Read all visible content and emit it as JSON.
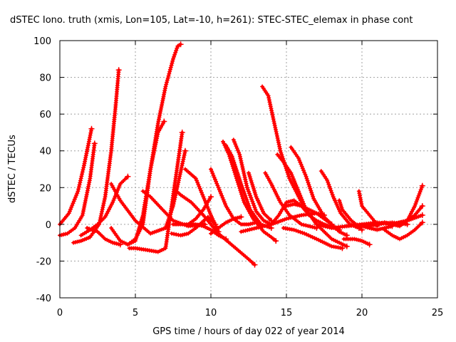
{
  "chart_data": {
    "type": "scatter",
    "title": "dSTEC Iono. truth (xmis, Lon=105, Lat=-10, h=261): STEC-STEC_elemax in phase cont",
    "xlabel": "GPS time / hours of day 022 of year 2014",
    "ylabel": "dSTEC  / TECUs",
    "xlim": [
      0,
      25
    ],
    "ylim": [
      -40,
      100
    ],
    "xticks": [
      0,
      5,
      10,
      15,
      20,
      25
    ],
    "yticks": [
      -40,
      -20,
      0,
      20,
      40,
      60,
      80,
      100
    ],
    "grid": true,
    "marker": "plus",
    "color": "#ff0000",
    "series": [
      {
        "x": [
          0.0,
          0.6,
          1.2,
          1.6,
          1.9,
          2.1
        ],
        "y": [
          0,
          6,
          18,
          32,
          44,
          52
        ]
      },
      {
        "x": [
          0.0,
          0.5,
          1.0,
          1.5,
          2.0,
          2.3
        ],
        "y": [
          -6,
          -5,
          -2,
          5,
          25,
          44
        ]
      },
      {
        "x": [
          0.9,
          1.4,
          2.0,
          2.6,
          3.0,
          3.4,
          3.7,
          3.9
        ],
        "y": [
          -10,
          -9,
          -7,
          0,
          15,
          40,
          65,
          84
        ]
      },
      {
        "x": [
          1.4,
          2.0,
          2.5,
          3.0,
          3.5,
          4.0,
          4.5
        ],
        "y": [
          -6,
          -3,
          0,
          4,
          12,
          22,
          26
        ]
      },
      {
        "x": [
          1.8,
          2.5,
          3.0,
          3.5,
          4.0
        ],
        "y": [
          -2,
          -4,
          -8,
          -10,
          -11
        ]
      },
      {
        "x": [
          3.4,
          4.0,
          4.5,
          5.0,
          5.5,
          6.0,
          6.5,
          7.0,
          7.5,
          7.8,
          8.0
        ],
        "y": [
          -2,
          -9,
          -11,
          -9,
          5,
          30,
          55,
          75,
          90,
          97,
          98
        ]
      },
      {
        "x": [
          4.5,
          5.0,
          5.5,
          6.0,
          6.5,
          6.9
        ],
        "y": [
          -11,
          -8,
          0,
          30,
          50,
          56
        ]
      },
      {
        "x": [
          3.4,
          4.0,
          5.0,
          6.0,
          7.0,
          7.5,
          8.3
        ],
        "y": [
          22,
          13,
          2,
          -5,
          -2,
          10,
          40
        ]
      },
      {
        "x": [
          4.6,
          5.0,
          5.8,
          6.5,
          7.0,
          8.1
        ],
        "y": [
          -13,
          -13,
          -14,
          -15,
          -13,
          50
        ]
      },
      {
        "x": [
          5.5,
          6.0,
          6.8,
          7.5,
          8.5,
          9.6
        ],
        "y": [
          18,
          15,
          8,
          2,
          -1,
          0
        ]
      },
      {
        "x": [
          7.4,
          8.0,
          8.5,
          9.0,
          9.8,
          10.3
        ],
        "y": [
          -5,
          -6,
          -5,
          -2,
          4,
          0
        ]
      },
      {
        "x": [
          7.5,
          8.0,
          8.5,
          9.0,
          9.5,
          10.0
        ],
        "y": [
          0,
          0,
          0,
          3,
          8,
          15
        ]
      },
      {
        "x": [
          7.6,
          8.0,
          8.7,
          9.5,
          10.5,
          11.5,
          12.5,
          12.9
        ],
        "y": [
          19,
          16,
          12,
          5,
          -5,
          -12,
          -19,
          -22
        ]
      },
      {
        "x": [
          8.5,
          9.0,
          9.5,
          10.0,
          10.5,
          11.0
        ],
        "y": [
          0,
          0,
          -1,
          -3,
          -6,
          -8
        ]
      },
      {
        "x": [
          8.3,
          9.0,
          9.5,
          10.0,
          10.5
        ],
        "y": [
          30,
          25,
          15,
          5,
          -4
        ]
      },
      {
        "x": [
          10.0,
          10.5,
          11.0,
          11.5,
          12.0,
          12.5,
          13.0,
          13.3
        ],
        "y": [
          30,
          20,
          10,
          3,
          0,
          0,
          1,
          0
        ]
      },
      {
        "x": [
          10.0,
          10.5,
          11.0,
          11.5,
          12.0
        ],
        "y": [
          -5,
          -2,
          1,
          3,
          4
        ]
      },
      {
        "x": [
          10.8,
          11.2,
          11.7,
          12.2,
          12.8,
          13.5,
          14.0,
          14.3
        ],
        "y": [
          45,
          38,
          25,
          12,
          3,
          -4,
          -7,
          -9
        ]
      },
      {
        "x": [
          11.0,
          11.4,
          12.0,
          12.6,
          13.3,
          14.0
        ],
        "y": [
          43,
          37,
          22,
          8,
          0,
          -2
        ]
      },
      {
        "x": [
          11.5,
          11.9,
          12.4,
          13.0,
          13.5,
          14.0
        ],
        "y": [
          46,
          38,
          20,
          7,
          2,
          0
        ]
      },
      {
        "x": [
          12.5,
          13.0,
          13.5,
          14.0
        ],
        "y": [
          28,
          15,
          6,
          2
        ]
      },
      {
        "x": [
          13.4,
          13.8,
          14.2,
          14.6,
          15.2,
          16.0,
          17.0,
          18.0,
          19.0
        ],
        "y": [
          75,
          70,
          55,
          40,
          25,
          12,
          0,
          -8,
          -12
        ]
      },
      {
        "x": [
          13.6,
          14.0,
          14.6,
          15.2,
          16.0,
          17.0
        ],
        "y": [
          28,
          22,
          12,
          5,
          0,
          -2
        ]
      },
      {
        "x": [
          14.4,
          14.8,
          15.3,
          15.8,
          16.3,
          17.0
        ],
        "y": [
          38,
          34,
          28,
          18,
          8,
          0
        ]
      },
      {
        "x": [
          12.0,
          13.0,
          14.0,
          15.0,
          16.0,
          17.0,
          17.5
        ],
        "y": [
          -4,
          -2,
          0,
          3,
          5,
          6,
          5
        ]
      },
      {
        "x": [
          14.0,
          14.5,
          15.0,
          15.5,
          16.0,
          16.5,
          17.0,
          17.5,
          18.5
        ],
        "y": [
          0,
          5,
          12,
          13,
          10,
          5,
          2,
          0,
          -3
        ]
      },
      {
        "x": [
          15.0,
          15.5,
          16.0,
          16.5,
          17.0,
          17.5,
          18.0,
          18.5,
          19.0
        ],
        "y": [
          10,
          11,
          10,
          8,
          6,
          3,
          0,
          -4,
          -6
        ]
      },
      {
        "x": [
          14.8,
          15.5,
          16.2,
          17.0,
          17.5,
          18.0,
          18.7
        ],
        "y": [
          -2,
          -3,
          -5,
          -8,
          -10,
          -12,
          -13
        ]
      },
      {
        "x": [
          15.3,
          15.8,
          16.3,
          16.8,
          17.5,
          18.0
        ],
        "y": [
          42,
          36,
          26,
          14,
          4,
          0
        ]
      },
      {
        "x": [
          17.3,
          17.7,
          18.1,
          18.6,
          19.2,
          19.8
        ],
        "y": [
          29,
          24,
          15,
          6,
          0,
          -2
        ]
      },
      {
        "x": [
          18.5,
          18.7,
          19.0,
          19.3,
          19.6,
          20.0
        ],
        "y": [
          13,
          8,
          5,
          2,
          0,
          -3
        ]
      },
      {
        "x": [
          18.8,
          19.5,
          20.0,
          20.5
        ],
        "y": [
          -8,
          -8,
          -9,
          -11
        ]
      },
      {
        "x": [
          19.8,
          20.0,
          20.4,
          20.8,
          21.0
        ],
        "y": [
          18,
          10,
          6,
          2,
          -1
        ]
      },
      {
        "x": [
          17.0,
          18.0,
          19.0,
          20.0,
          21.0,
          22.0,
          23.0
        ],
        "y": [
          0,
          -2,
          -1,
          0,
          0,
          1,
          0
        ]
      },
      {
        "x": [
          19.0,
          20.0,
          21.0,
          22.0,
          23.0,
          24.0
        ],
        "y": [
          -1,
          0,
          1,
          0,
          2,
          5
        ]
      },
      {
        "x": [
          20.0,
          20.5,
          21.0,
          21.5,
          22.0,
          22.5,
          23.0,
          23.5,
          24.0
        ],
        "y": [
          0,
          -1,
          0,
          1,
          0,
          -1,
          2,
          10,
          21
        ]
      },
      {
        "x": [
          20.5,
          21.0,
          21.5,
          22.0,
          22.5,
          23.0,
          23.5,
          24.0
        ],
        "y": [
          0,
          0,
          1,
          0,
          1,
          2,
          5,
          10
        ]
      },
      {
        "x": [
          21.5,
          22.0,
          22.5,
          23.0,
          23.5,
          24.0
        ],
        "y": [
          -3,
          -6,
          -8,
          -6,
          -3,
          1
        ]
      },
      {
        "x": [
          20.0,
          20.5,
          21.0,
          21.5,
          22.0
        ],
        "y": [
          -1,
          -2,
          -3,
          -2,
          -1
        ]
      }
    ]
  }
}
